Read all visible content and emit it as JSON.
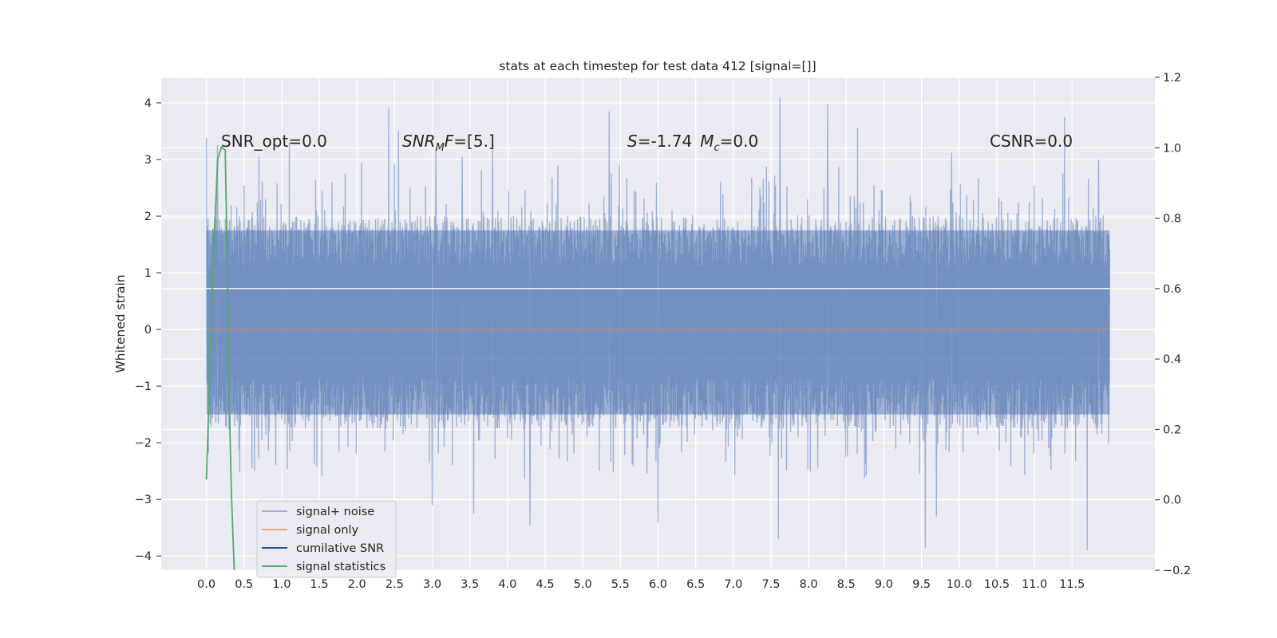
{
  "chart_data": {
    "type": "line",
    "title": "stats at each timestep for test data 412 [signal=[]]",
    "ylabel": "Whitened strain",
    "xlabel": "",
    "xlim": [
      -0.6,
      12.6
    ],
    "ylim": [
      -4.25,
      4.45
    ],
    "y2lim": [
      -0.2,
      1.2
    ],
    "xticks": [
      "0.0",
      "0.5",
      "1.0",
      "1.5",
      "2.0",
      "2.5",
      "3.0",
      "3.5",
      "4.0",
      "4.5",
      "5.0",
      "5.5",
      "6.0",
      "6.5",
      "7.0",
      "7.5",
      "8.0",
      "8.5",
      "9.0",
      "9.5",
      "10.0",
      "10.5",
      "11.0",
      "11.5"
    ],
    "yticks": [
      "−4",
      "−3",
      "−2",
      "−1",
      "0",
      "1",
      "2",
      "3",
      "4"
    ],
    "y2ticks": [
      "−0.2",
      "0.0",
      "0.2",
      "0.4",
      "0.6",
      "0.8",
      "1.0",
      "1.2"
    ],
    "grid": true,
    "legend_placement": "lower-left",
    "annotations": {
      "snr_opt": "SNR_opt=0.0",
      "snr_mf": "SNR",
      "snr_mf_sub": "M",
      "snr_mf_rest": "F=[5.]",
      "s_label": "S",
      "s_value": "=-1.74",
      "mc_label": "M",
      "mc_sub": "c",
      "mc_value": "=0.0",
      "csnr": "CSNR=0.0"
    },
    "series": [
      {
        "name": "signal+ noise",
        "color": "#4c72b0",
        "axis": "left",
        "noise_envelope": {
          "x_start": 0.0,
          "x_end": 12.0,
          "typical_low": -1.75,
          "typical_high": 2.0,
          "max": 4.1,
          "min": -3.9
        },
        "extremes": [
          [
            0.0,
            3.38
          ],
          [
            0.15,
            3.25
          ],
          [
            0.7,
            3.05
          ],
          [
            1.1,
            3.3
          ],
          [
            2.42,
            3.9
          ],
          [
            2.55,
            3.5
          ],
          [
            3.05,
            3.2
          ],
          [
            3.4,
            3.05
          ],
          [
            3.8,
            3.35
          ],
          [
            5.35,
            3.85
          ],
          [
            7.62,
            4.1
          ],
          [
            8.25,
            3.98
          ],
          [
            8.65,
            3.55
          ],
          [
            9.9,
            3.12
          ],
          [
            11.4,
            3.75
          ],
          [
            11.85,
            3.0
          ],
          [
            3.55,
            -3.25
          ],
          [
            4.3,
            -3.45
          ],
          [
            7.6,
            -3.7
          ],
          [
            9.55,
            -3.85
          ],
          [
            9.7,
            -3.3
          ],
          [
            11.7,
            -3.9
          ],
          [
            6.0,
            -3.4
          ],
          [
            3.0,
            -3.1
          ]
        ]
      },
      {
        "name": "signal only",
        "color": "#dd8452",
        "axis": "left",
        "x": [
          0.0,
          12.0
        ],
        "y": [
          0.0,
          0.0
        ]
      },
      {
        "name": "cumilative SNR",
        "color": "#2a4f9a",
        "axis": "right",
        "x": [
          0.0,
          12.0
        ],
        "y": [
          0.6,
          0.6
        ]
      },
      {
        "name": "signal statistics",
        "color": "#55a868",
        "axis": "left",
        "x": [
          0.0,
          0.05,
          0.1,
          0.15,
          0.2,
          0.25,
          0.28,
          0.3,
          0.33,
          0.37
        ],
        "y": [
          -2.65,
          -0.5,
          1.5,
          3.0,
          3.22,
          3.17,
          1.0,
          -1.0,
          -2.8,
          -4.25
        ]
      }
    ]
  }
}
